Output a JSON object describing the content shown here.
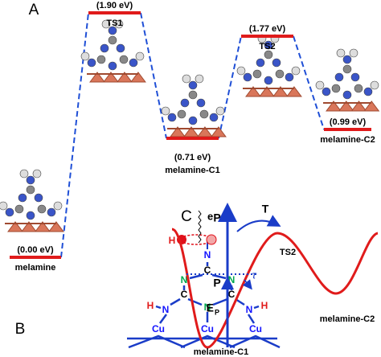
{
  "panel_a": {
    "label": "A",
    "states": [
      {
        "energy": "(0.00 eV)",
        "name": "melamine"
      },
      {
        "energy": "(1.90 eV)",
        "name": "TS1"
      },
      {
        "energy": "(0.71 eV)",
        "name": "melamine-C1"
      },
      {
        "energy": "(1.77 eV)",
        "name": "TS2"
      },
      {
        "energy": "(0.99 eV)",
        "name": "melamine-C2"
      }
    ]
  },
  "panel_b": {
    "label": "B",
    "electron": "e",
    "atoms": [
      "H",
      "N",
      "C",
      "N",
      "N",
      "C",
      "C",
      "N",
      "H",
      "N",
      "N",
      "H",
      "Cu",
      "Cu",
      "Cu"
    ]
  },
  "panel_c": {
    "label": "C",
    "momentum_top": "P",
    "torque": "T",
    "ts": "TS2",
    "momentum_low": "P",
    "tau": "τ",
    "energy": "E",
    "energy_sub": "P",
    "min1": "melamine-C1",
    "min2": "melamine-C2"
  }
}
